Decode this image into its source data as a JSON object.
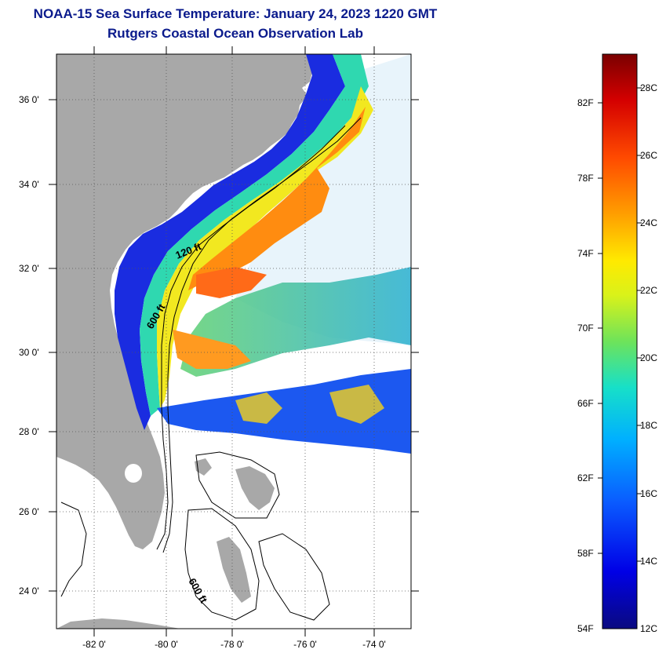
{
  "title_line1": "NOAA-15 Sea Surface Temperature:  January 24, 2023 1220 GMT",
  "title_line2": "Rutgers Coastal Ocean Observation Lab",
  "lat_labels": [
    "36 0'",
    "34 0'",
    "32 0'",
    "30 0'",
    "28 0'",
    "26 0'",
    "24 0'"
  ],
  "lon_labels": [
    "-82 0'",
    "-80 0'",
    "-78 0'",
    "-76 0'",
    "-74 0'"
  ],
  "contour_labels": [
    "120 ft",
    "600 ft",
    "600 ft"
  ],
  "colorbar": {
    "fahrenheit": [
      "82F",
      "78F",
      "74F",
      "70F",
      "66F",
      "62F",
      "58F",
      "54F"
    ],
    "celsius": [
      "28C",
      "26C",
      "24C",
      "22C",
      "20C",
      "18C",
      "16C",
      "14C",
      "12C"
    ]
  },
  "colors": {
    "land": "#a8a8a8",
    "title": "#0a1a8c"
  }
}
